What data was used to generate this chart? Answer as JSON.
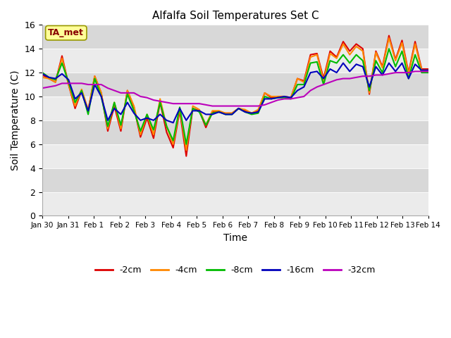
{
  "title": "Alfalfa Soil Temperatures Set C",
  "xlabel": "Time",
  "ylabel": "Soil Temperature (C)",
  "ylim": [
    0,
    16
  ],
  "yticks": [
    0,
    2,
    4,
    6,
    8,
    10,
    12,
    14,
    16
  ],
  "bg_light": "#ebebeb",
  "bg_dark": "#d8d8d8",
  "annotation_label": "TA_met",
  "annotation_color": "#880000",
  "annotation_bg": "#ffff99",
  "annotation_border": "#999900",
  "x_labels": [
    "Jan 30",
    "Jan 31",
    "Feb 1",
    "Feb 2",
    "Feb 3",
    "Feb 4",
    "Feb 5",
    "Feb 6",
    "Feb 7",
    "Feb 8",
    "Feb 9",
    "Feb 10",
    "Feb 11",
    "Feb 12",
    "Feb 13",
    "Feb 14"
  ],
  "series_order": [
    "-2cm",
    "-4cm",
    "-8cm",
    "-16cm",
    "-32cm"
  ],
  "series_colors": {
    "-2cm": "#dd0000",
    "-4cm": "#ff8800",
    "-8cm": "#00bb00",
    "-16cm": "#0000bb",
    "-32cm": "#bb00bb"
  },
  "data": {
    "-2cm": [
      11.8,
      11.5,
      11.2,
      13.4,
      11.0,
      9.0,
      10.5,
      8.8,
      11.7,
      10.3,
      7.1,
      9.2,
      7.1,
      10.5,
      9.1,
      6.6,
      8.2,
      6.5,
      9.5,
      7.0,
      5.7,
      8.8,
      5.0,
      9.0,
      8.8,
      7.4,
      8.7,
      8.7,
      8.6,
      8.6,
      9.0,
      8.8,
      8.6,
      8.8,
      10.3,
      9.9,
      10.0,
      10.0,
      9.9,
      11.5,
      11.3,
      13.5,
      13.6,
      11.5,
      13.8,
      13.3,
      14.6,
      13.8,
      14.4,
      14.0,
      10.2,
      13.8,
      12.5,
      15.1,
      13.1,
      14.7,
      12.0,
      14.6,
      12.3,
      12.3
    ],
    "-4cm": [
      11.6,
      11.5,
      11.2,
      13.2,
      11.0,
      9.2,
      10.6,
      8.9,
      11.7,
      10.3,
      7.3,
      9.5,
      7.3,
      10.5,
      9.2,
      6.8,
      8.5,
      6.8,
      9.8,
      7.5,
      6.0,
      9.0,
      5.5,
      9.2,
      8.9,
      7.6,
      8.8,
      8.8,
      8.6,
      8.6,
      9.0,
      8.9,
      8.6,
      8.9,
      10.3,
      10.0,
      10.0,
      10.0,
      9.9,
      11.5,
      11.2,
      13.3,
      13.5,
      11.3,
      13.6,
      13.2,
      14.4,
      13.5,
      14.2,
      13.8,
      10.3,
      13.7,
      12.4,
      14.9,
      13.0,
      14.5,
      11.9,
      14.4,
      12.2,
      12.2
    ],
    "-8cm": [
      12.0,
      11.6,
      11.4,
      12.8,
      11.2,
      9.5,
      10.5,
      8.5,
      11.5,
      10.0,
      7.5,
      9.5,
      7.6,
      10.2,
      8.8,
      7.1,
      8.5,
      7.2,
      9.5,
      7.5,
      6.3,
      9.1,
      6.0,
      9.0,
      8.7,
      7.6,
      8.6,
      8.7,
      8.5,
      8.5,
      9.0,
      8.7,
      8.5,
      8.6,
      10.0,
      9.8,
      9.9,
      9.9,
      9.8,
      11.0,
      11.0,
      12.8,
      12.9,
      11.0,
      13.0,
      12.8,
      13.5,
      12.8,
      13.5,
      13.0,
      10.5,
      13.0,
      12.0,
      14.0,
      12.5,
      13.8,
      11.5,
      13.5,
      12.0,
      12.0
    ],
    "-16cm": [
      11.9,
      11.6,
      11.5,
      11.9,
      11.4,
      9.8,
      10.3,
      8.8,
      11.0,
      10.0,
      8.0,
      9.0,
      8.5,
      9.5,
      8.6,
      8.0,
      8.2,
      8.0,
      8.5,
      8.0,
      7.8,
      9.0,
      8.0,
      8.8,
      8.8,
      8.5,
      8.5,
      8.7,
      8.5,
      8.5,
      9.0,
      8.7,
      8.6,
      8.7,
      9.8,
      9.8,
      9.9,
      10.0,
      9.9,
      10.5,
      10.8,
      12.0,
      12.1,
      11.5,
      12.3,
      12.0,
      12.8,
      12.1,
      12.7,
      12.5,
      10.8,
      12.5,
      11.8,
      12.8,
      12.1,
      12.8,
      11.5,
      12.7,
      12.2,
      12.2
    ],
    "-32cm": [
      10.7,
      10.8,
      10.9,
      11.1,
      11.1,
      11.1,
      11.1,
      11.0,
      11.0,
      11.0,
      10.7,
      10.5,
      10.3,
      10.3,
      10.3,
      10.0,
      9.9,
      9.7,
      9.6,
      9.5,
      9.4,
      9.4,
      9.4,
      9.4,
      9.4,
      9.3,
      9.2,
      9.2,
      9.2,
      9.2,
      9.2,
      9.2,
      9.2,
      9.2,
      9.3,
      9.5,
      9.7,
      9.8,
      9.8,
      9.9,
      10.0,
      10.5,
      10.8,
      11.0,
      11.2,
      11.4,
      11.5,
      11.5,
      11.6,
      11.7,
      11.7,
      11.8,
      11.8,
      11.9,
      12.0,
      12.0,
      12.0,
      12.1,
      12.1,
      12.1
    ]
  }
}
